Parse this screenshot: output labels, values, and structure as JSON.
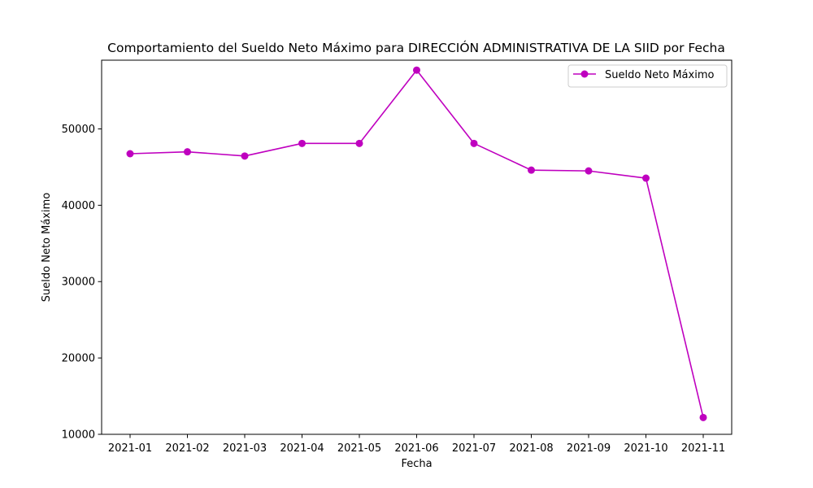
{
  "chart_data": {
    "type": "line",
    "title": "Comportamiento del Sueldo Neto Máximo para DIRECCIÓN ADMINISTRATIVA DE LA SIID por Fecha",
    "xlabel": "Fecha",
    "ylabel": "Sueldo Neto Máximo",
    "categories": [
      "2021-01",
      "2021-02",
      "2021-03",
      "2021-04",
      "2021-05",
      "2021-06",
      "2021-07",
      "2021-08",
      "2021-09",
      "2021-10",
      "2021-11"
    ],
    "series": [
      {
        "name": "Sueldo Neto Máximo",
        "color": "#bf00bf",
        "marker": "circle",
        "values": [
          46750,
          47000,
          46450,
          48100,
          48100,
          57700,
          48100,
          44600,
          44500,
          43550,
          12200
        ]
      }
    ],
    "ylim": [
      10000,
      59000
    ],
    "yticks": [
      10000,
      20000,
      30000,
      40000,
      50000
    ],
    "ytick_labels": [
      "10000",
      "20000",
      "30000",
      "40000",
      "50000"
    ],
    "grid": false,
    "legend_position": "upper-right"
  }
}
